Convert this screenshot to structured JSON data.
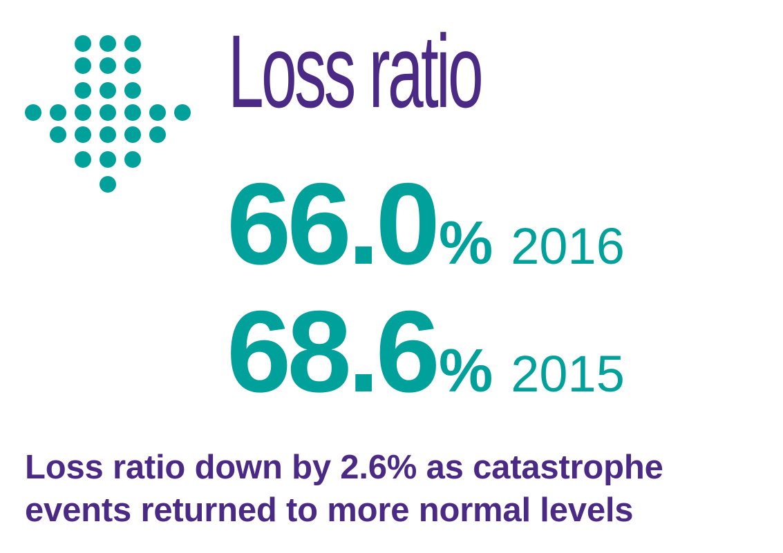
{
  "icon": {
    "name": "down-arrow-dots-icon",
    "color": "#00A19A"
  },
  "title": "Loss ratio",
  "stats": [
    {
      "value": "66.0",
      "unit": "%",
      "year": "2016"
    },
    {
      "value": "68.6",
      "unit": "%",
      "year": "2015"
    }
  ],
  "caption": {
    "line1": "Loss ratio down by 2.6% as catastrophe",
    "line2": "events returned to more normal levels"
  },
  "colors": {
    "title": "#4B2A86",
    "stats": "#00A19A",
    "caption": "#4B2A86"
  }
}
